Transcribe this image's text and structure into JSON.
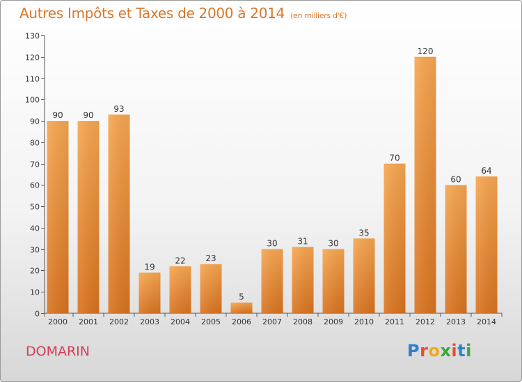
{
  "title": "Autres Impôts et Taxes de 2000 à 2014",
  "unit_label": "(en milliers d'€)",
  "commune": "DOMARIN",
  "logo_text": "Proxiti",
  "colors": {
    "title": "#d9772a",
    "bar_light": "#f7a650",
    "bar_dark": "#d9731f",
    "commune": "#d63d55",
    "logo": [
      "#2f7fd1",
      "#e84d2f",
      "#f0a81f",
      "#3aa83a",
      "#e84d2f",
      "#2f7fd1",
      "#3aa83a"
    ]
  },
  "chart_data": {
    "type": "bar",
    "categories": [
      "2000",
      "2001",
      "2002",
      "2003",
      "2004",
      "2005",
      "2006",
      "2007",
      "2008",
      "2009",
      "2010",
      "2011",
      "2012",
      "2013",
      "2014"
    ],
    "values": [
      90,
      90,
      93,
      19,
      22,
      23,
      5,
      30,
      31,
      30,
      35,
      70,
      120,
      60,
      64
    ],
    "ylim": [
      0,
      130
    ],
    "yticks": [
      0,
      10,
      20,
      30,
      40,
      50,
      60,
      70,
      80,
      90,
      100,
      110,
      120,
      130
    ],
    "xlabel": "",
    "ylabel": "",
    "grid": false,
    "data_labels": true
  }
}
